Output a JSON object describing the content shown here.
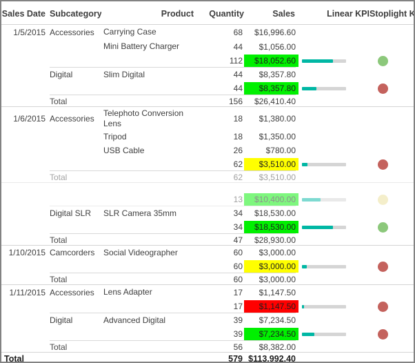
{
  "header": {
    "columns": [
      "Sales Date",
      "Subcategory",
      "Product",
      "Quantity",
      "Sales",
      "Linear KPI",
      "Stoplight KPI"
    ]
  },
  "colors": {
    "bar_fill": "#00B7A4",
    "bar_track": "#D5D5D5",
    "kpi_green": "#00F000",
    "kpi_yellow": "#FFFF00",
    "kpi_red": "#FF0000",
    "stoplight_green": "#8CC87B",
    "stoplight_yellow": "#EADE96",
    "stoplight_red": "#C4625D"
  },
  "sections": [
    {
      "date": "1/5/2015",
      "groups": [
        {
          "subcategory": "Accessories",
          "products": [
            {
              "name": "Carrying Case",
              "qty": "68",
              "sales": "$16,996.60"
            },
            {
              "name": "Mini Battery Charger",
              "qty": "44",
              "sales": "$1,056.00"
            }
          ],
          "subtotal": {
            "qty": "112",
            "sales": "$18,052.60",
            "bg": "#00F000",
            "fill": "71%",
            "light": "#8CC87B"
          }
        },
        {
          "subcategory": "Digital",
          "products": [
            {
              "name": "Slim Digital",
              "qty": "44",
              "sales": "$8,357.80"
            }
          ],
          "subtotal": {
            "qty": "44",
            "sales": "$8,357.80",
            "bg": "#00F000",
            "fill": "33%",
            "light": "#C4625D"
          }
        }
      ],
      "total": {
        "label": "Total",
        "qty": "156",
        "sales": "$26,410.40"
      }
    },
    {
      "date": "1/6/2015",
      "groups": [
        {
          "subcategory": "Accessories",
          "products": [
            {
              "name": "Telephoto Conversion Lens",
              "qty": "18",
              "sales": "$1,380.00"
            },
            {
              "name": "Tripod",
              "qty": "18",
              "sales": "$1,350.00"
            },
            {
              "name": "USB Cable",
              "qty": "26",
              "sales": "$780.00"
            }
          ],
          "subtotal": {
            "qty": "62",
            "sales": "$3,510.00",
            "bg": "#FFFF00",
            "fill": "13%",
            "light": "#C4625D"
          }
        }
      ],
      "total": {
        "label": "Total",
        "qty": "62",
        "sales": "$3,510.00"
      }
    },
    {
      "date": "",
      "groups": [
        {
          "subcategory": "",
          "products": [],
          "subtotal": {
            "qty": "13",
            "sales": "$10,400.00",
            "bg": "#00F000",
            "fill": "42%",
            "light": "#EADE96"
          }
        },
        {
          "subcategory": "Digital SLR",
          "products": [
            {
              "name": "SLR Camera 35mm",
              "qty": "34",
              "sales": "$18,530.00"
            }
          ],
          "subtotal": {
            "qty": "34",
            "sales": "$18,530.00",
            "bg": "#00F000",
            "fill": "71%",
            "light": "#8CC87B"
          }
        }
      ],
      "total": {
        "label": "Total",
        "qty": "47",
        "sales": "$28,930.00"
      }
    },
    {
      "date": "1/10/2015",
      "groups": [
        {
          "subcategory": "Camcorders",
          "products": [
            {
              "name": "Social Videographer",
              "qty": "60",
              "sales": "$3,000.00"
            }
          ],
          "subtotal": {
            "qty": "60",
            "sales": "$3,000.00",
            "bg": "#FFFF00",
            "fill": "11%",
            "light": "#C4625D"
          }
        }
      ],
      "total": {
        "label": "Total",
        "qty": "60",
        "sales": "$3,000.00"
      }
    },
    {
      "date": "1/11/2015",
      "groups": [
        {
          "subcategory": "Accessories",
          "products": [
            {
              "name": "Lens Adapter",
              "qty": "17",
              "sales": "$1,147.50"
            }
          ],
          "subtotal": {
            "qty": "17",
            "sales": "$1,147.50",
            "bg": "#FF0000",
            "fill": "5%",
            "light": "#C4625D"
          }
        },
        {
          "subcategory": "Digital",
          "products": [
            {
              "name": "Advanced Digital",
              "qty": "39",
              "sales": "$7,234.50"
            }
          ],
          "subtotal": {
            "qty": "39",
            "sales": "$7,234.50",
            "bg": "#00F000",
            "fill": "28%",
            "light": "#C4625D"
          }
        }
      ],
      "total": {
        "label": "Total",
        "qty": "56",
        "sales": "$8,382.00"
      }
    }
  ],
  "grand_total": {
    "label": "Total",
    "qty": "579",
    "sales": "$113,992.40"
  }
}
